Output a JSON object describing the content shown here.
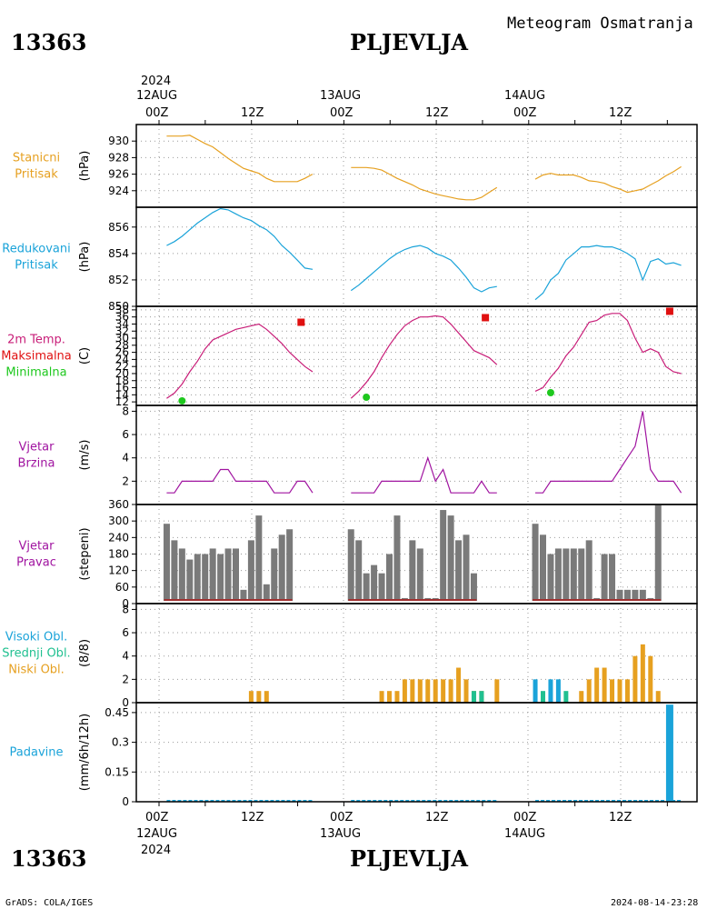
{
  "header": {
    "station_id": "13363",
    "station_name": "PLJEVLJA",
    "subtitle": "Meteogram Osmatranja"
  },
  "top_axis": {
    "year": "2024",
    "dates": [
      "12AUG",
      "13AUG",
      "14AUG"
    ],
    "labels": [
      "00Z",
      "12Z",
      "00Z",
      "12Z",
      "00Z",
      "12Z"
    ]
  },
  "bottom_axis": {
    "labels": [
      "00Z",
      "12Z",
      "00Z",
      "12Z",
      "00Z",
      "12Z"
    ],
    "dates": [
      "12AUG",
      "13AUG",
      "14AUG"
    ],
    "year": "2024"
  },
  "footer": {
    "left": "GrADS: COLA/IGES",
    "right": "2024-08-14-23:28"
  },
  "colors": {
    "pressure": "#e6a020",
    "reduced": "#1aa3d9",
    "temp": "#c81d78",
    "max": "#e01010",
    "min": "#1ec81e",
    "wind": "#a014a0",
    "bars": "#7a7a7a",
    "cloud_high": "#1aa3d9",
    "cloud_mid": "#20c090",
    "cloud_low": "#e6a020",
    "precip": "#1aa3d9"
  },
  "chart_data": [
    {
      "id": "stn_pressure",
      "type": "line",
      "title_lines": [
        "Stanicni",
        "Pritisak"
      ],
      "ylabel": "(hPa)",
      "ylim": [
        922,
        932
      ],
      "yticks": [
        924,
        926,
        928,
        930
      ],
      "segments": [
        {
          "x": [
            1,
            2,
            3,
            4,
            5,
            6,
            7,
            8,
            9,
            10,
            11,
            12,
            13,
            14,
            15,
            16,
            17,
            18,
            19,
            20
          ],
          "y": [
            930.6,
            930.6,
            930.6,
            930.7,
            930.2,
            929.7,
            929.3,
            928.6,
            927.9,
            927.3,
            926.7,
            926.4,
            926.1,
            925.5,
            925.1,
            925.1,
            925.1,
            925.1,
            925.5,
            926.0
          ]
        },
        {
          "x": [
            25,
            26,
            27,
            28,
            29,
            30,
            31,
            32,
            33,
            34,
            35,
            36,
            37,
            38,
            39,
            40,
            41,
            42,
            43,
            44
          ],
          "y": [
            926.8,
            926.8,
            926.8,
            926.7,
            926.5,
            926.0,
            925.5,
            925.1,
            924.7,
            924.2,
            923.9,
            923.6,
            923.4,
            923.2,
            923.0,
            922.9,
            922.9,
            923.2,
            923.8,
            924.4
          ]
        },
        {
          "x": [
            49,
            50,
            51,
            52,
            53,
            54,
            55,
            56,
            57,
            58,
            59,
            60,
            61,
            62,
            63,
            64,
            65,
            66,
            67,
            68
          ],
          "y": [
            925.4,
            925.9,
            926.1,
            925.9,
            925.9,
            925.9,
            925.6,
            925.2,
            925.1,
            924.9,
            924.5,
            924.2,
            923.8,
            924.0,
            924.2,
            924.7,
            925.2,
            925.8,
            926.3,
            926.9
          ]
        }
      ]
    },
    {
      "id": "red_pressure",
      "type": "line",
      "title_lines": [
        "Redukovani",
        "Pritisak"
      ],
      "ylabel": "(hPa)",
      "ylim": [
        850,
        857.5
      ],
      "yticks": [
        850,
        852,
        854,
        856
      ],
      "segments": [
        {
          "x": [
            1,
            2,
            3,
            4,
            5,
            6,
            7,
            8,
            9,
            10,
            11,
            12,
            13,
            14,
            15,
            16,
            17,
            18,
            19,
            20
          ],
          "y": [
            854.6,
            854.9,
            855.3,
            855.8,
            856.3,
            856.7,
            857.1,
            857.4,
            857.3,
            857.0,
            856.7,
            856.5,
            856.1,
            855.8,
            855.3,
            854.6,
            854.1,
            853.5,
            852.9,
            852.8
          ]
        },
        {
          "x": [
            25,
            26,
            27,
            28,
            29,
            30,
            31,
            32,
            33,
            34,
            35,
            36,
            37,
            38,
            39,
            40,
            41,
            42,
            43,
            44
          ],
          "y": [
            851.2,
            851.6,
            852.1,
            852.6,
            853.1,
            853.6,
            854.0,
            854.3,
            854.5,
            854.6,
            854.4,
            854.0,
            853.8,
            853.5,
            852.9,
            852.2,
            851.4,
            851.1,
            851.4,
            851.5
          ]
        },
        {
          "x": [
            49,
            50,
            51,
            52,
            53,
            54,
            55,
            56,
            57,
            58,
            59,
            60,
            61,
            62,
            63,
            64,
            65,
            66,
            67,
            68
          ],
          "y": [
            850.5,
            851.0,
            852.0,
            852.5,
            853.5,
            854.0,
            854.5,
            854.5,
            854.6,
            854.5,
            854.5,
            854.3,
            854.0,
            853.6,
            852.0,
            853.4,
            853.6,
            853.2,
            853.3,
            853.1
          ]
        }
      ]
    },
    {
      "id": "temperature",
      "type": "line",
      "title_lines": [
        "2m Temp.",
        "Maksimalna",
        "Minimalna"
      ],
      "ylabel": "(C)",
      "ylim": [
        11,
        39
      ],
      "yticks": [
        12,
        14,
        16,
        18,
        20,
        22,
        24,
        26,
        28,
        30,
        32,
        34,
        36,
        38
      ],
      "segments": [
        {
          "x": [
            1,
            2,
            3,
            4,
            5,
            6,
            7,
            8,
            9,
            10,
            11,
            12,
            13,
            14,
            15,
            16,
            17,
            18,
            19,
            20
          ],
          "y": [
            13.0,
            14.5,
            17.0,
            20.5,
            23.5,
            27.0,
            29.5,
            30.5,
            31.5,
            32.5,
            33.0,
            33.5,
            34.0,
            32.5,
            30.5,
            28.5,
            26.0,
            24.0,
            22.0,
            20.5
          ]
        },
        {
          "x": [
            25,
            26,
            27,
            28,
            29,
            30,
            31,
            32,
            33,
            34,
            35,
            36,
            37,
            38,
            39,
            40,
            41,
            42,
            43,
            44
          ],
          "y": [
            13.0,
            15.0,
            17.5,
            20.5,
            24.5,
            28.0,
            31.0,
            33.5,
            35.0,
            36.0,
            36.0,
            36.3,
            36.0,
            34.0,
            31.5,
            29.0,
            26.5,
            25.5,
            24.5,
            22.5
          ]
        },
        {
          "x": [
            49,
            50,
            51,
            52,
            53,
            54,
            55,
            56,
            57,
            58,
            59,
            60,
            61,
            62,
            63,
            64,
            65,
            66,
            67,
            68
          ],
          "y": [
            15.0,
            16.0,
            19.0,
            21.5,
            25.0,
            27.5,
            31.0,
            34.5,
            35.0,
            36.5,
            37.0,
            37.0,
            35.0,
            30.0,
            26.0,
            27.0,
            26.0,
            22.0,
            20.5,
            20.0
          ]
        }
      ],
      "max_points": [
        {
          "x": 18.5,
          "y": 34.5
        },
        {
          "x": 42.5,
          "y": 35.8
        },
        {
          "x": 66.5,
          "y": 37.6
        }
      ],
      "min_points": [
        {
          "x": 3,
          "y": 12.3
        },
        {
          "x": 27,
          "y": 13.3
        },
        {
          "x": 51,
          "y": 14.6
        }
      ]
    },
    {
      "id": "wind_speed",
      "type": "line",
      "title_lines": [
        "Vjetar",
        "Brzina"
      ],
      "ylabel": "(m/s)",
      "ylim": [
        0,
        8.5
      ],
      "yticks": [
        2,
        4,
        6,
        8
      ],
      "segments": [
        {
          "x": [
            1,
            2,
            3,
            4,
            5,
            6,
            7,
            8,
            9,
            10,
            11,
            12,
            13,
            14,
            15,
            16,
            17,
            18,
            19,
            20
          ],
          "y": [
            1,
            1,
            2,
            2,
            2,
            2,
            2,
            3,
            3,
            2,
            2,
            2,
            2,
            2,
            1,
            1,
            1,
            2,
            2,
            1
          ]
        },
        {
          "x": [
            25,
            26,
            27,
            28,
            29,
            30,
            31,
            32,
            33,
            34,
            35,
            36,
            37,
            38,
            39,
            40,
            41,
            42,
            43,
            44
          ],
          "y": [
            1,
            1,
            1,
            1,
            2,
            2,
            2,
            2,
            2,
            2,
            4,
            2,
            3,
            1,
            1,
            1,
            1,
            2,
            1,
            1
          ]
        },
        {
          "x": [
            49,
            50,
            51,
            52,
            53,
            54,
            55,
            56,
            57,
            58,
            59,
            60,
            61,
            62,
            63,
            64,
            65,
            66,
            67,
            68
          ],
          "y": [
            1,
            1,
            2,
            2,
            2,
            2,
            2,
            2,
            2,
            2,
            2,
            3,
            4,
            5,
            8,
            3,
            2,
            2,
            2,
            1
          ]
        }
      ]
    },
    {
      "id": "wind_dir",
      "type": "bar",
      "title_lines": [
        "Vjetar",
        "Pravac"
      ],
      "ylabel": "(stepeni)",
      "ylim": [
        0,
        360
      ],
      "yticks": [
        0,
        60,
        120,
        180,
        240,
        300,
        360
      ],
      "segments": [
        {
          "x": [
            1,
            2,
            3,
            4,
            5,
            6,
            7,
            8,
            9,
            10,
            11,
            12,
            13,
            14,
            15,
            16,
            17,
            18,
            19,
            20
          ],
          "y": [
            290,
            230,
            200,
            160,
            180,
            180,
            200,
            180,
            200,
            200,
            50,
            230,
            320,
            70,
            200,
            250,
            270,
            0,
            0,
            0
          ]
        },
        {
          "x": [
            25,
            26,
            27,
            28,
            29,
            30,
            31,
            32,
            33,
            34,
            35,
            36,
            37,
            38,
            39,
            40,
            41,
            42,
            43,
            44
          ],
          "y": [
            270,
            230,
            110,
            140,
            110,
            180,
            320,
            20,
            230,
            200,
            20,
            20,
            340,
            320,
            230,
            250,
            110,
            0,
            0,
            0
          ]
        },
        {
          "x": [
            49,
            50,
            51,
            52,
            53,
            54,
            55,
            56,
            57,
            58,
            59,
            60,
            61,
            62,
            63,
            64,
            65,
            66,
            67,
            68
          ],
          "y": [
            290,
            250,
            180,
            200,
            200,
            200,
            200,
            230,
            20,
            180,
            180,
            50,
            50,
            50,
            50,
            20,
            360,
            0,
            0,
            0
          ]
        }
      ]
    },
    {
      "id": "clouds",
      "type": "bar",
      "title_lines": [
        "Visoki Obl.",
        "Srednji Obl.",
        "Niski Obl."
      ],
      "ylabel": "(8/8)",
      "ylim": [
        0,
        8.5
      ],
      "yticks": [
        0,
        2,
        4,
        6,
        8
      ],
      "high": {
        "x": [
          49,
          51,
          52
        ],
        "y": [
          2,
          2,
          2
        ]
      },
      "mid": {
        "x": [
          50,
          53,
          41,
          42
        ],
        "y": [
          1,
          1,
          1,
          1
        ]
      },
      "low": {
        "x": [
          12,
          13,
          14,
          29,
          30,
          31,
          32,
          33,
          34,
          35,
          36,
          37,
          38,
          39,
          40,
          41,
          42,
          44,
          55,
          56,
          57,
          58,
          59,
          60,
          61,
          62,
          63,
          64,
          65
        ],
        "y": [
          1,
          1,
          1,
          1,
          1,
          1,
          2,
          2,
          2,
          2,
          2,
          2,
          2,
          3,
          2,
          1,
          1,
          2,
          1,
          2,
          3,
          3,
          2,
          2,
          2,
          4,
          5,
          4,
          1
        ]
      }
    },
    {
      "id": "precip",
      "type": "bar",
      "title_lines": [
        "Padavine"
      ],
      "ylabel": "(mm/6h/12h)",
      "ylim": [
        0,
        0.5
      ],
      "yticks": [
        0,
        0.15,
        0.3,
        0.45
      ],
      "ytick_labels": [
        "0",
        "0.15",
        "0.3",
        "0.45"
      ],
      "bars": {
        "x": [
          66.5
        ],
        "y": [
          0.49
        ]
      }
    }
  ]
}
